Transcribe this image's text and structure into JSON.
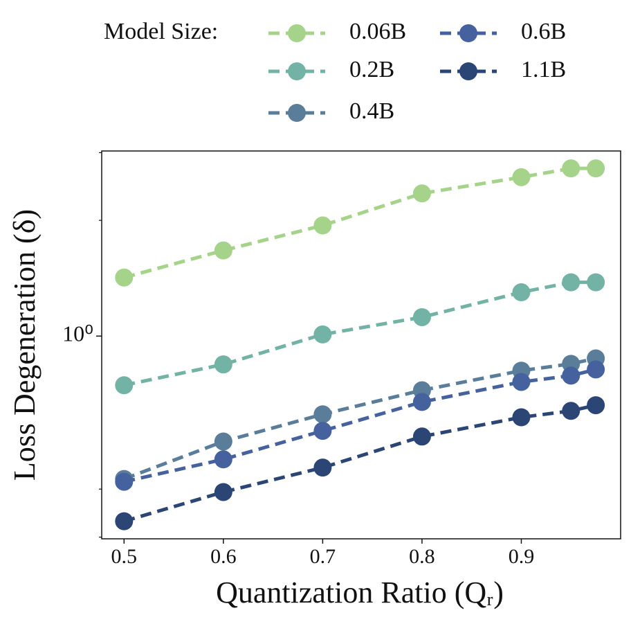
{
  "chart_data": {
    "type": "line",
    "legend_title": "Model Size:",
    "xlabel": "Quantization Ratio (Qᵣ)",
    "ylabel": "Loss Degeneration (δ)",
    "x": [
      0.5,
      0.6,
      0.7,
      0.8,
      0.9,
      0.95,
      0.975
    ],
    "series": [
      {
        "name": "0.06B",
        "color": "#a5d38a",
        "values": [
          1.42,
          1.67,
          1.94,
          2.35,
          2.59,
          2.73,
          2.73
        ]
      },
      {
        "name": "0.2B",
        "color": "#72b3a6",
        "values": [
          0.745,
          0.844,
          1.01,
          1.12,
          1.3,
          1.38,
          1.38
        ]
      },
      {
        "name": "0.4B",
        "color": "#5a7d9a",
        "values": [
          0.425,
          0.532,
          0.626,
          0.723,
          0.813,
          0.847,
          0.875
        ]
      },
      {
        "name": "0.6B",
        "color": "#46629e",
        "values": [
          0.418,
          0.478,
          0.567,
          0.674,
          0.76,
          0.789,
          0.819
        ]
      },
      {
        "name": "1.1B",
        "color": "#2b4675",
        "values": [
          0.33,
          0.393,
          0.455,
          0.548,
          0.615,
          0.639,
          0.661
        ]
      }
    ],
    "xlim": [
      0.4775,
      1.0
    ],
    "xticks": [
      0.5,
      0.6,
      0.7,
      0.8,
      0.9
    ],
    "ylim": [
      0.297,
      3.03
    ],
    "yticks": [
      {
        "value": 1,
        "label": "10⁰"
      }
    ],
    "yminorticks": [
      0.3,
      0.4,
      2,
      3
    ],
    "ylog": true
  }
}
